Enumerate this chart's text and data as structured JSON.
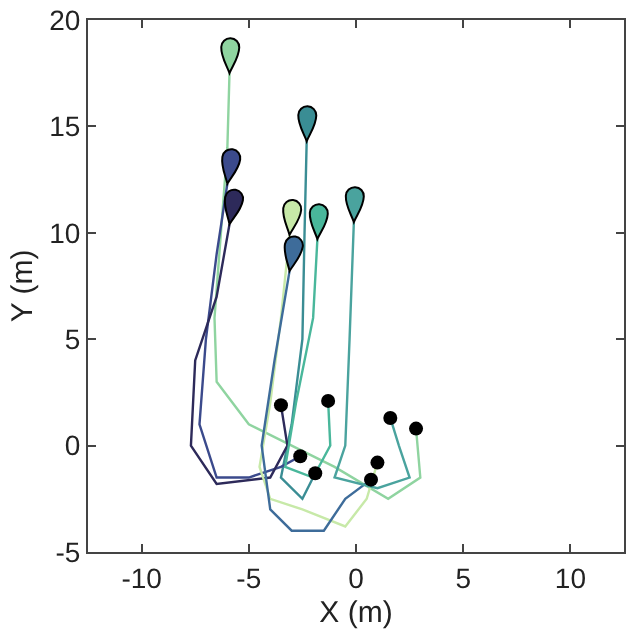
{
  "chart_data": {
    "type": "line",
    "xlabel": "X (m)",
    "ylabel": "Y (m)",
    "xlim": [
      -12.5,
      12.5
    ],
    "ylim": [
      -5,
      20
    ],
    "xticks": [
      -10,
      -5,
      0,
      5,
      10
    ],
    "yticks": [
      -5,
      0,
      5,
      10,
      15,
      20
    ],
    "grid": false,
    "line_style": "solid",
    "series": [
      {
        "color": "#8fd4a0",
        "x": [
          2.8,
          3,
          1.5,
          -1,
          -3,
          -5,
          -6.5,
          -6.6,
          -6.3,
          -6,
          -5.9
        ],
        "values": [
          0.8,
          -1.5,
          -2.5,
          -1,
          0,
          1,
          3,
          6,
          10,
          14,
          17.5
        ]
      },
      {
        "color": "#3a8d94",
        "x": [
          -1.9,
          -2.5,
          -3.5,
          -3,
          -2.5,
          -2.4,
          -2.3
        ],
        "values": [
          -1.3,
          -2.5,
          -1.5,
          1,
          5,
          10,
          14.3
        ]
      },
      {
        "color": "#3b4a8c",
        "x": [
          -2.6,
          -3.5,
          -5,
          -6.5,
          -7.3,
          -7,
          -6.5,
          -6
        ],
        "values": [
          -0.5,
          -1,
          -1.5,
          -1.5,
          1,
          5,
          9,
          12.3
        ]
      },
      {
        "color": "#2d2a5a",
        "x": [
          -3.5,
          -3.2,
          -4,
          -6.5,
          -7.7,
          -7.5,
          -6.5,
          -5.9
        ],
        "values": [
          1.9,
          0,
          -1.5,
          -1.8,
          0,
          4,
          7,
          10.4
        ]
      },
      {
        "color": "#c7e9a8",
        "x": [
          1,
          0.5,
          -0.5,
          -2.5,
          -4,
          -4.5,
          -4,
          -3.5,
          -3.1
        ],
        "values": [
          -0.8,
          -2.5,
          -3.8,
          -3,
          -2.5,
          -1,
          2,
          6,
          9.9
        ]
      },
      {
        "color": "#3e6c9a",
        "x": [
          0.7,
          -0.5,
          -1.5,
          -3,
          -4,
          -4.4,
          -3.8,
          -3.1
        ],
        "values": [
          -1.6,
          -2.5,
          -4,
          -4,
          -3,
          0,
          4,
          8.2
        ]
      },
      {
        "color": "#49b79b",
        "x": [
          -1.3,
          -1.2,
          -2,
          -3.3,
          -2.8,
          -2,
          -1.8
        ],
        "values": [
          2.1,
          0,
          -1.5,
          -1,
          2,
          6,
          9.7
        ]
      },
      {
        "color": "#4aa39e",
        "x": [
          1.6,
          2,
          2.5,
          1,
          -1,
          -0.5,
          -0.3,
          -0.1
        ],
        "values": [
          1.3,
          0,
          -1.5,
          -2,
          -1.5,
          0,
          5,
          10.5
        ]
      },
      {
        "type": "scatter",
        "marker": "circle",
        "color": "#000000",
        "x": [
          -3.5,
          -1.3,
          1.6,
          2.8,
          -2.6,
          -1.9,
          1,
          0.7
        ],
        "values": [
          1.9,
          2.1,
          1.3,
          0.8,
          -0.5,
          -1.3,
          -0.8,
          -1.6
        ]
      }
    ]
  }
}
